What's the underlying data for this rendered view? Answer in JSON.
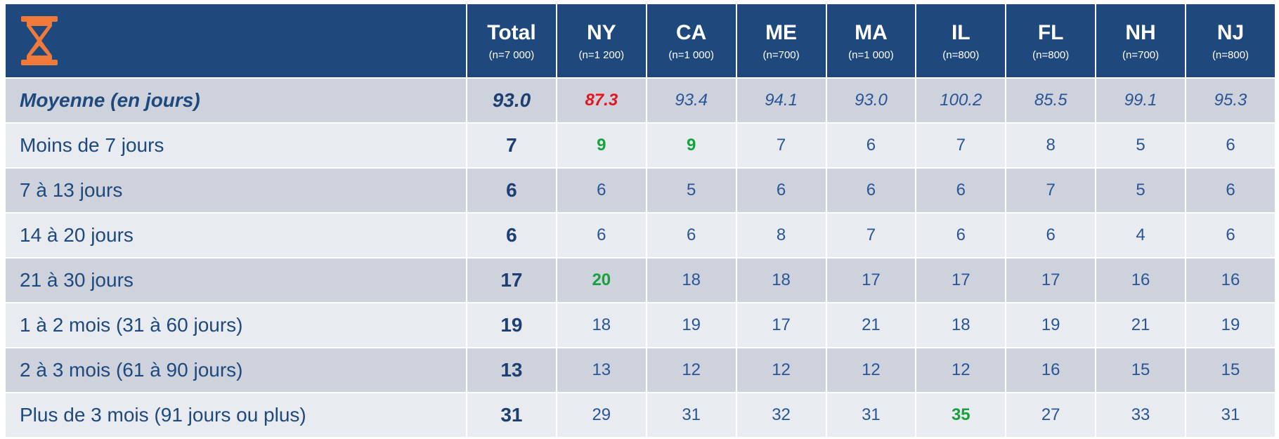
{
  "header": {
    "columns": [
      {
        "name": "Total",
        "n": "(n=7 000)"
      },
      {
        "name": "NY",
        "n": "(n=1 200)"
      },
      {
        "name": "CA",
        "n": "(n=1 000)"
      },
      {
        "name": "ME",
        "n": "(n=700)"
      },
      {
        "name": "MA",
        "n": "(n=1 000)"
      },
      {
        "name": "IL",
        "n": "(n=800)"
      },
      {
        "name": "FL",
        "n": "(n=800)"
      },
      {
        "name": "NH",
        "n": "(n=700)"
      },
      {
        "name": "NJ",
        "n": "(n=800)"
      }
    ]
  },
  "table": {
    "rows": [
      {
        "label": "Moyenne (en jours)",
        "values": [
          "93.0",
          "87.3",
          "93.4",
          "94.1",
          "93.0",
          "100.2",
          "85.5",
          "99.1",
          "95.3"
        ]
      },
      {
        "label": "Moins de 7 jours",
        "values": [
          "7",
          "9",
          "9",
          "7",
          "6",
          "7",
          "8",
          "5",
          "6"
        ]
      },
      {
        "label": "7 à 13 jours",
        "values": [
          "6",
          "6",
          "5",
          "6",
          "6",
          "6",
          "7",
          "5",
          "6"
        ]
      },
      {
        "label": "14 à 20 jours",
        "values": [
          "6",
          "6",
          "6",
          "8",
          "7",
          "6",
          "6",
          "4",
          "6"
        ]
      },
      {
        "label": "21 à 30 jours",
        "values": [
          "17",
          "20",
          "18",
          "18",
          "17",
          "17",
          "17",
          "16",
          "16"
        ]
      },
      {
        "label": "1 à 2 mois (31 à 60 jours)",
        "values": [
          "19",
          "18",
          "19",
          "17",
          "21",
          "18",
          "19",
          "21",
          "19"
        ]
      },
      {
        "label": "2 à 3 mois (61 à 90 jours)",
        "values": [
          "13",
          "13",
          "12",
          "12",
          "12",
          "12",
          "16",
          "15",
          "15"
        ]
      },
      {
        "label": "Plus de 3 mois (91 jours ou plus)",
        "values": [
          "31",
          "29",
          "31",
          "32",
          "31",
          "35",
          "27",
          "33",
          "31"
        ]
      }
    ]
  }
}
